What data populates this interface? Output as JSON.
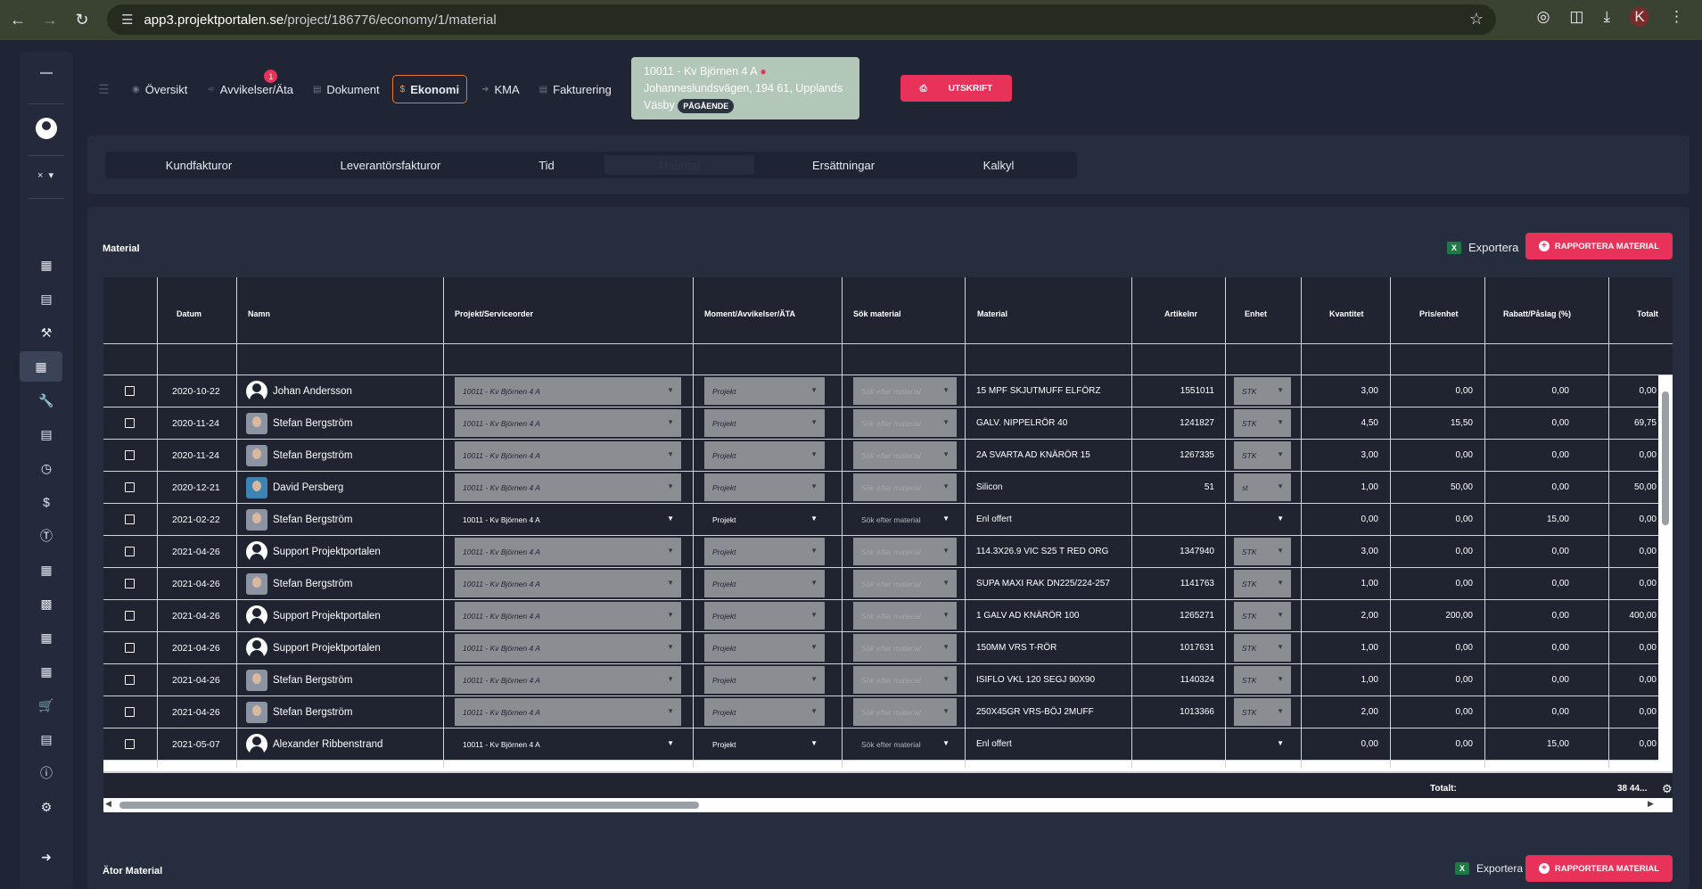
{
  "browser": {
    "url_domain": "app3.projektportalen.se",
    "url_path": "/project/186776/economy/1/material",
    "profile_initial": "K"
  },
  "topnav": {
    "items": [
      {
        "label": "Översikt"
      },
      {
        "label": "Avvikelser/Äta",
        "badge": "1"
      },
      {
        "label": "Dokument"
      },
      {
        "label": "Ekonomi",
        "active": true
      },
      {
        "label": "KMA"
      },
      {
        "label": "Fakturering"
      }
    ]
  },
  "project": {
    "title": "10011 - Kv Björnen 4 A",
    "address_line1": "Johanneslundsvägen, 194 61, Upplands",
    "address_line2": "Väsby",
    "status": "PÅGÅENDE"
  },
  "print_button": "UTSKRIFT",
  "subtabs": [
    {
      "label": "Kundfakturor"
    },
    {
      "label": "Leverantörsfakturor"
    },
    {
      "label": "Tid"
    },
    {
      "label": "Material",
      "active": true
    },
    {
      "label": "Ersättningar"
    },
    {
      "label": "Kalkyl"
    }
  ],
  "material_section": {
    "title": "Material",
    "export_label": "Exportera",
    "report_button": "RAPPORTERA MATERIAL"
  },
  "table": {
    "headers": [
      "Datum",
      "Namn",
      "Projekt/Serviceorder",
      "Moment/Avvikelser/ÄTA",
      "Sök material",
      "Material",
      "Artikelnr",
      "Enhet",
      "Kvantitet",
      "Pris/enhet",
      "Rabatt/Påslag (%)",
      "Totalt"
    ],
    "rows": [
      {
        "date": "2020-10-22",
        "name": "Johan Andersson",
        "avatar": "blank",
        "project": "10011 - Kv Björnen 4 A",
        "moment": "Projekt",
        "search": "Sök efter material",
        "material": "15 MPF SKJUTMUFF ELFÖRZ",
        "article": "1551011",
        "unit": "STK",
        "qty": "3,00",
        "price": "0,00",
        "discount": "0,00",
        "total": "0,00",
        "locked": true
      },
      {
        "date": "2020-11-24",
        "name": "Stefan Bergström",
        "avatar": "photo",
        "project": "10011 - Kv Björnen 4 A",
        "moment": "Projekt",
        "search": "Sök efter material",
        "material": "GALV. NIPPELRÖR 40",
        "article": "1241827",
        "unit": "STK",
        "qty": "4,50",
        "price": "15,50",
        "discount": "0,00",
        "total": "69,75",
        "locked": true
      },
      {
        "date": "2020-11-24",
        "name": "Stefan Bergström",
        "avatar": "photo",
        "project": "10011 - Kv Björnen 4 A",
        "moment": "Projekt",
        "search": "Sök efter material",
        "material": "2A SVARTA AD KNÄRÖR 15",
        "article": "1267335",
        "unit": "STK",
        "qty": "3,00",
        "price": "0,00",
        "discount": "0,00",
        "total": "0,00",
        "locked": true
      },
      {
        "date": "2020-12-21",
        "name": "David Persberg",
        "avatar": "photo-dp",
        "project": "10011 - Kv Björnen 4 A",
        "moment": "Projekt",
        "search": "Sök efter material",
        "material": "Silicon",
        "article": "51",
        "unit": "st",
        "qty": "1,00",
        "price": "50,00",
        "discount": "0,00",
        "total": "50,00",
        "locked": true
      },
      {
        "date": "2021-02-22",
        "name": "Stefan Bergström",
        "avatar": "photo",
        "project": "10011 - Kv Björnen 4 A",
        "moment": "Projekt",
        "search": "Sök efter material",
        "material": "Enl offert",
        "article": "",
        "unit": "",
        "qty": "0,00",
        "price": "0,00",
        "discount": "15,00",
        "total": "0,00",
        "locked": false
      },
      {
        "date": "2021-04-26",
        "name": "Support Projektportalen",
        "avatar": "blank",
        "project": "10011 - Kv Björnen 4 A",
        "moment": "Projekt",
        "search": "Sök efter material",
        "material": "114.3X26.9 VIC S25 T RED ORG",
        "article": "1347940",
        "unit": "STK",
        "qty": "3,00",
        "price": "0,00",
        "discount": "0,00",
        "total": "0,00",
        "locked": true
      },
      {
        "date": "2021-04-26",
        "name": "Stefan Bergström",
        "avatar": "photo",
        "project": "10011 - Kv Björnen 4 A",
        "moment": "Projekt",
        "search": "Sök efter material",
        "material": "SUPA MAXI RAK DN225/224-257",
        "article": "1141763",
        "unit": "STK",
        "qty": "1,00",
        "price": "0,00",
        "discount": "0,00",
        "total": "0,00",
        "locked": true
      },
      {
        "date": "2021-04-26",
        "name": "Support Projektportalen",
        "avatar": "blank",
        "project": "10011 - Kv Björnen 4 A",
        "moment": "Projekt",
        "search": "Sök efter material",
        "material": "1 GALV AD KNÄRÖR 100",
        "article": "1265271",
        "unit": "STK",
        "qty": "2,00",
        "price": "200,00",
        "discount": "0,00",
        "total": "400,00",
        "locked": true
      },
      {
        "date": "2021-04-26",
        "name": "Support Projektportalen",
        "avatar": "blank",
        "project": "10011 - Kv Björnen 4 A",
        "moment": "Projekt",
        "search": "Sök efter material",
        "material": "150MM VRS T-RÖR",
        "article": "1017631",
        "unit": "STK",
        "qty": "1,00",
        "price": "0,00",
        "discount": "0,00",
        "total": "0,00",
        "locked": true
      },
      {
        "date": "2021-04-26",
        "name": "Stefan Bergström",
        "avatar": "photo",
        "project": "10011 - Kv Björnen 4 A",
        "moment": "Projekt",
        "search": "Sök efter material",
        "material": "ISIFLO VKL 120 SEGJ 90X90",
        "article": "1140324",
        "unit": "STK",
        "qty": "1,00",
        "price": "0,00",
        "discount": "0,00",
        "total": "0,00",
        "locked": true
      },
      {
        "date": "2021-04-26",
        "name": "Stefan Bergström",
        "avatar": "photo",
        "project": "10011 - Kv Björnen 4 A",
        "moment": "Projekt",
        "search": "Sök efter material",
        "material": "250X45GR VRS-BÖJ 2MUFF",
        "article": "1013366",
        "unit": "STK",
        "qty": "2,00",
        "price": "0,00",
        "discount": "0,00",
        "total": "0,00",
        "locked": true
      },
      {
        "date": "2021-05-07",
        "name": "Alexander Ribbenstrand",
        "avatar": "blank",
        "project": "10011 - Kv Björnen 4 A",
        "moment": "Projekt",
        "search": "Sök efter material",
        "material": "Enl offert",
        "article": "",
        "unit": "",
        "qty": "0,00",
        "price": "0,00",
        "discount": "15,00",
        "total": "0,00",
        "locked": false
      }
    ],
    "totals_label": "Totalt:",
    "totals_value": "38 44..."
  },
  "ator_section": {
    "title": "Ätor Material",
    "export_label": "Exportera",
    "report_button": "RAPPORTERA MATERIAL"
  },
  "colors": {
    "accent": "#e8325a",
    "active_tab_border": "#e07a2e",
    "background": "#1f2535",
    "panel": "#262d3f"
  }
}
